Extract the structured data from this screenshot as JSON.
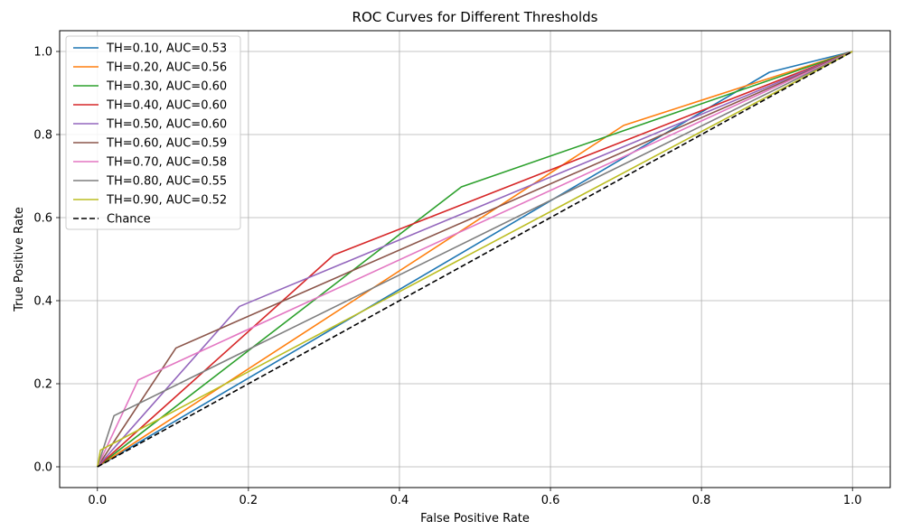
{
  "chart_data": {
    "type": "line",
    "title": "ROC Curves for Different Thresholds",
    "xlabel": "False Positive Rate",
    "ylabel": "True Positive Rate",
    "xlim": [
      -0.05,
      1.05
    ],
    "ylim": [
      -0.05,
      1.05
    ],
    "xticks": [
      "0.0",
      "0.2",
      "0.4",
      "0.6",
      "0.8",
      "1.0"
    ],
    "yticks": [
      "0.0",
      "0.2",
      "0.4",
      "0.6",
      "0.8",
      "1.0"
    ],
    "grid": true,
    "legend_position": "top-left",
    "series": [
      {
        "name": "TH=0.10, AUC=0.53",
        "color": "#1f77b4",
        "x": [
          0,
          0.89,
          1.0
        ],
        "y": [
          0,
          0.95,
          1.0
        ]
      },
      {
        "name": "TH=0.20, AUC=0.56",
        "color": "#ff7f0e",
        "x": [
          0,
          0.697,
          1.0
        ],
        "y": [
          0,
          0.822,
          1.0
        ]
      },
      {
        "name": "TH=0.30, AUC=0.60",
        "color": "#2ca02c",
        "x": [
          0,
          0.482,
          1.0
        ],
        "y": [
          0,
          0.674,
          1.0
        ]
      },
      {
        "name": "TH=0.40, AUC=0.60",
        "color": "#d62728",
        "x": [
          0,
          0.313,
          1.0
        ],
        "y": [
          0,
          0.51,
          1.0
        ]
      },
      {
        "name": "TH=0.50, AUC=0.60",
        "color": "#9467bd",
        "x": [
          0,
          0.188,
          1.0
        ],
        "y": [
          0,
          0.386,
          1.0
        ]
      },
      {
        "name": "TH=0.60, AUC=0.59",
        "color": "#8c564b",
        "x": [
          0,
          0.104,
          1.0
        ],
        "y": [
          0,
          0.286,
          1.0
        ]
      },
      {
        "name": "TH=0.70, AUC=0.58",
        "color": "#e377c2",
        "x": [
          0,
          0.054,
          1.0
        ],
        "y": [
          0,
          0.209,
          1.0
        ]
      },
      {
        "name": "TH=0.80, AUC=0.55",
        "color": "#7f7f7f",
        "x": [
          0,
          0.022,
          1.0
        ],
        "y": [
          0,
          0.123,
          1.0
        ]
      },
      {
        "name": "TH=0.90, AUC=0.52",
        "color": "#bcbd22",
        "x": [
          0,
          0.004,
          1.0
        ],
        "y": [
          0,
          0.04,
          1.0
        ]
      },
      {
        "name": "Chance",
        "color": "#000000",
        "dashed": true,
        "x": [
          0,
          1.0
        ],
        "y": [
          0,
          1.0
        ]
      }
    ]
  }
}
